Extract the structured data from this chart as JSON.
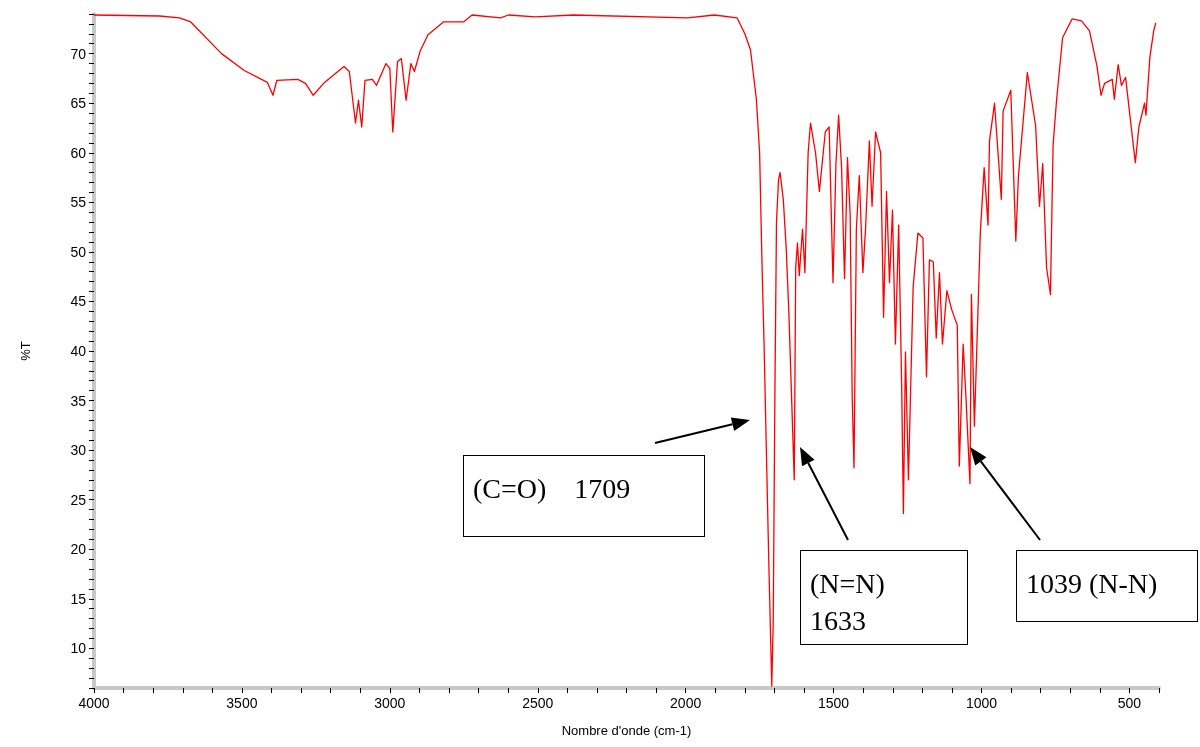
{
  "chart_data": {
    "type": "line",
    "xlabel": "Nombre d'onde (cm-1)",
    "ylabel": "%T",
    "x": [
      4000,
      3779,
      3711,
      3673,
      3569,
      3492,
      3414,
      3395,
      3382,
      3311,
      3285,
      3259,
      3221,
      3155,
      3137,
      3116,
      3106,
      3095,
      3084,
      3059,
      3045,
      3013,
      3000,
      2990,
      2974,
      2961,
      2945,
      2929,
      2917,
      2897,
      2871,
      2819,
      2751,
      2722,
      2626,
      2599,
      2508,
      2380,
      1994,
      1903,
      1826,
      1800,
      1781,
      1771,
      1761,
      1750,
      1742,
      1735,
      1720,
      1709,
      1704,
      1698,
      1693,
      1686,
      1681,
      1670,
      1660,
      1651,
      1633,
      1628,
      1622,
      1616,
      1605,
      1597,
      1586,
      1578,
      1561,
      1548,
      1528,
      1515,
      1502,
      1492,
      1483,
      1473,
      1463,
      1453,
      1444,
      1437,
      1431,
      1423,
      1413,
      1401,
      1392,
      1379,
      1370,
      1358,
      1341,
      1331,
      1321,
      1311,
      1301,
      1291,
      1280,
      1270,
      1264,
      1257,
      1247,
      1231,
      1215,
      1198,
      1186,
      1176,
      1163,
      1153,
      1142,
      1132,
      1117,
      1101,
      1082,
      1075,
      1062,
      1052,
      1039,
      1034,
      1024,
      1013,
      1004,
      991,
      978,
      973,
      956,
      933,
      927,
      901,
      884,
      875,
      845,
      817,
      804,
      793,
      780,
      767,
      758,
      746,
      726,
      694,
      662,
      635,
      610,
      596,
      584,
      558,
      551,
      538,
      527,
      513,
      500,
      480,
      468,
      449,
      444,
      431,
      418,
      411
    ],
    "series": [
      {
        "color": "#ff0000",
        "values": [
          73.9,
          73.8,
          73.6,
          73.2,
          70.0,
          68.3,
          67.1,
          65.8,
          67.3,
          67.4,
          67.0,
          65.8,
          67.1,
          68.7,
          68.2,
          63.0,
          65.3,
          62.6,
          67.3,
          67.4,
          66.8,
          69.0,
          68.5,
          62.1,
          69.2,
          69.5,
          65.3,
          69.0,
          68.2,
          70.3,
          71.9,
          73.2,
          73.2,
          73.9,
          73.6,
          73.9,
          73.7,
          73.9,
          73.6,
          73.9,
          73.6,
          72.0,
          70.4,
          67.9,
          65.4,
          60.0,
          48.8,
          40.7,
          20.0,
          6.2,
          12.8,
          37.0,
          53.0,
          57.3,
          58.0,
          55.3,
          50.3,
          43.7,
          27.0,
          48.4,
          50.9,
          47.6,
          52.3,
          47.9,
          60.0,
          63.0,
          60.0,
          56.1,
          62.1,
          62.6,
          46.9,
          58.9,
          63.8,
          58.5,
          47.3,
          59.5,
          53.8,
          35.3,
          28.2,
          52.3,
          57.7,
          47.9,
          52.3,
          61.2,
          54.6,
          62.1,
          60.0,
          43.4,
          56.1,
          46.9,
          54.2,
          40.7,
          52.7,
          36.8,
          23.6,
          39.9,
          27.0,
          46.5,
          51.9,
          51.4,
          37.4,
          49.2,
          49.0,
          41.3,
          47.9,
          40.7,
          46.1,
          44.2,
          42.6,
          28.4,
          40.7,
          35.0,
          26.6,
          45.7,
          32.4,
          43.0,
          51.9,
          58.5,
          52.7,
          61.2,
          65.0,
          55.3,
          64.2,
          66.3,
          51.1,
          57.7,
          68.1,
          62.7,
          54.6,
          58.9,
          48.4,
          45.7,
          60.8,
          65.4,
          71.6,
          73.5,
          73.3,
          72.3,
          68.8,
          65.8,
          67.0,
          67.4,
          65.4,
          68.9,
          66.8,
          67.6,
          64.2,
          59.0,
          62.6,
          65.0,
          63.8,
          69.6,
          72.3,
          73.1
        ]
      }
    ],
    "xlim": [
      4000,
      400
    ],
    "xticks": [
      {
        "value": 400,
        "label": null
      },
      500,
      {
        "value": 600,
        "label": null
      },
      {
        "value": 700,
        "label": null
      },
      {
        "value": 800,
        "label": null
      },
      {
        "value": 900,
        "label": null
      },
      1000,
      {
        "value": 1100,
        "label": null
      },
      {
        "value": 1200,
        "label": null
      },
      {
        "value": 1300,
        "label": null
      },
      {
        "value": 1400,
        "label": null
      },
      1500,
      {
        "value": 1600,
        "label": null
      },
      {
        "value": 1700,
        "label": null
      },
      {
        "value": 1800,
        "label": null
      },
      {
        "value": 1900,
        "label": null
      },
      2000,
      {
        "value": 2100,
        "label": null
      },
      {
        "value": 2200,
        "label": null
      },
      {
        "value": 2300,
        "label": null
      },
      {
        "value": 2400,
        "label": null
      },
      2500,
      {
        "value": 2600,
        "label": null
      },
      {
        "value": 2700,
        "label": null
      },
      {
        "value": 2800,
        "label": null
      },
      {
        "value": 2900,
        "label": null
      },
      3000,
      {
        "value": 3100,
        "label": null
      },
      {
        "value": 3200,
        "label": null
      },
      {
        "value": 3300,
        "label": null
      },
      {
        "value": 3400,
        "label": null
      },
      3500,
      {
        "value": 3600,
        "label": null
      },
      {
        "value": 3700,
        "label": null
      },
      {
        "value": 3800,
        "label": null
      },
      {
        "value": 3900,
        "label": null
      },
      4000
    ],
    "ylim": [
      6,
      74
    ],
    "yticks": [
      {
        "value": 6,
        "label": null
      },
      {
        "value": 7,
        "label": null
      },
      {
        "value": 8,
        "label": null
      },
      {
        "value": 9,
        "label": null
      },
      10,
      {
        "value": 11,
        "label": null
      },
      {
        "value": 12,
        "label": null
      },
      {
        "value": 13,
        "label": null
      },
      {
        "value": 14,
        "label": null
      },
      15,
      {
        "value": 16,
        "label": null
      },
      {
        "value": 17,
        "label": null
      },
      {
        "value": 18,
        "label": null
      },
      {
        "value": 19,
        "label": null
      },
      20,
      {
        "value": 21,
        "label": null
      },
      {
        "value": 22,
        "label": null
      },
      {
        "value": 23,
        "label": null
      },
      {
        "value": 24,
        "label": null
      },
      25,
      {
        "value": 26,
        "label": null
      },
      {
        "value": 27,
        "label": null
      },
      {
        "value": 28,
        "label": null
      },
      {
        "value": 29,
        "label": null
      },
      30,
      {
        "value": 31,
        "label": null
      },
      {
        "value": 32,
        "label": null
      },
      {
        "value": 33,
        "label": null
      },
      {
        "value": 34,
        "label": null
      },
      35,
      {
        "value": 36,
        "label": null
      },
      {
        "value": 37,
        "label": null
      },
      {
        "value": 38,
        "label": null
      },
      {
        "value": 39,
        "label": null
      },
      40,
      {
        "value": 41,
        "label": null
      },
      {
        "value": 42,
        "label": null
      },
      {
        "value": 43,
        "label": null
      },
      {
        "value": 44,
        "label": null
      },
      45,
      {
        "value": 46,
        "label": null
      },
      {
        "value": 47,
        "label": null
      },
      {
        "value": 48,
        "label": null
      },
      {
        "value": 49,
        "label": null
      },
      50,
      {
        "value": 51,
        "label": null
      },
      {
        "value": 52,
        "label": null
      },
      {
        "value": 53,
        "label": null
      },
      {
        "value": 54,
        "label": null
      },
      55,
      {
        "value": 56,
        "label": null
      },
      {
        "value": 57,
        "label": null
      },
      {
        "value": 58,
        "label": null
      },
      {
        "value": 59,
        "label": null
      },
      60,
      {
        "value": 61,
        "label": null
      },
      {
        "value": 62,
        "label": null
      },
      {
        "value": 63,
        "label": null
      },
      {
        "value": 64,
        "label": null
      },
      65,
      {
        "value": 66,
        "label": null
      },
      {
        "value": 67,
        "label": null
      },
      {
        "value": 68,
        "label": null
      },
      {
        "value": 69,
        "label": null
      },
      70,
      {
        "value": 71,
        "label": null
      },
      {
        "value": 72,
        "label": null
      },
      {
        "value": 73,
        "label": null
      },
      {
        "value": 74,
        "label": null
      }
    ],
    "annotations": [
      "(C=O)    1709",
      "(N=N) 1633",
      "1039 (N-N)"
    ],
    "grid": false,
    "marker": "none",
    "line_style": "solid"
  }
}
